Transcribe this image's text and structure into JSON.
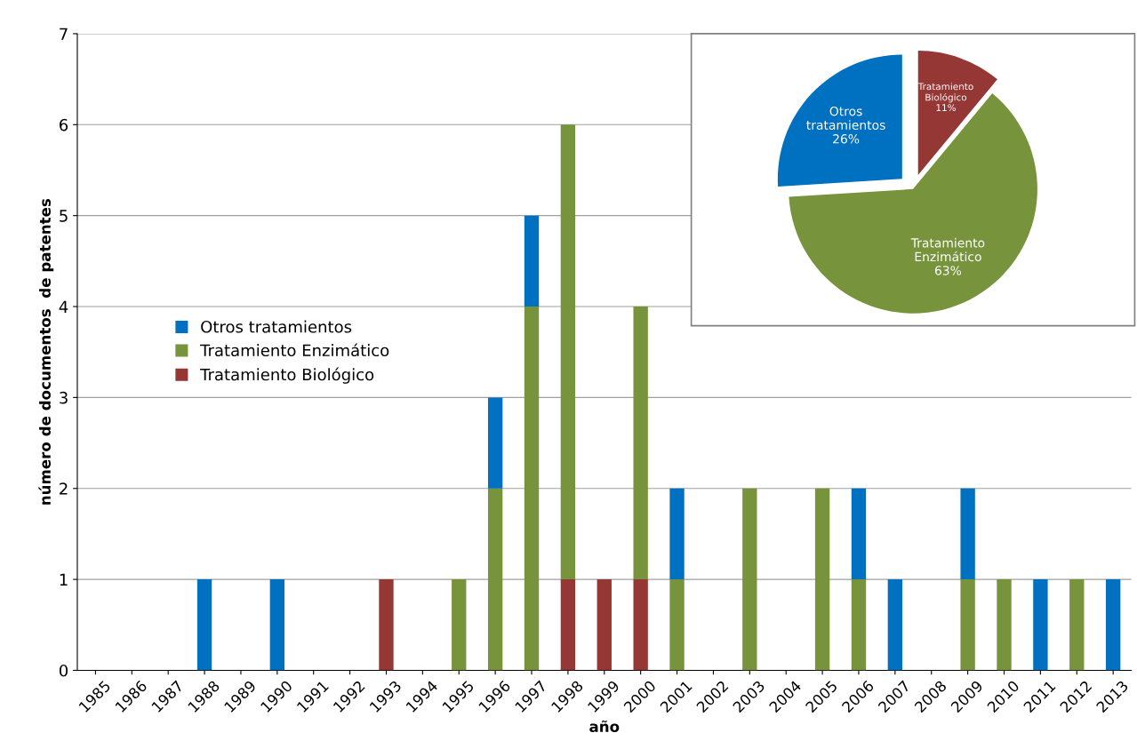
{
  "chart_data": [
    {
      "type": "bar",
      "stacked": true,
      "xlabel": "año",
      "ylabel": "número de documentos  de patentes",
      "categories": [
        "1985",
        "1986",
        "1987",
        "1988",
        "1989",
        "1990",
        "1991",
        "1992",
        "1993",
        "1994",
        "1995",
        "1996",
        "1997",
        "1998",
        "1999",
        "2000",
        "2001",
        "2002",
        "2003",
        "2004",
        "2005",
        "2006",
        "2007",
        "2008",
        "2009",
        "2010",
        "2011",
        "2012",
        "2013"
      ],
      "series": [
        {
          "name": "Tratamiento Biológico",
          "color": "#953735",
          "values": [
            0,
            0,
            0,
            0,
            0,
            0,
            0,
            0,
            1,
            0,
            0,
            0,
            0,
            1,
            1,
            1,
            0,
            0,
            0,
            0,
            0,
            0,
            0,
            0,
            0,
            0,
            0,
            0,
            0
          ]
        },
        {
          "name": "Tratamiento Enzimático",
          "color": "#77933c",
          "values": [
            0,
            0,
            0,
            0,
            0,
            0,
            0,
            0,
            0,
            0,
            1,
            2,
            4,
            5,
            0,
            3,
            1,
            0,
            2,
            0,
            2,
            1,
            0,
            0,
            1,
            1,
            0,
            1,
            0
          ]
        },
        {
          "name": "Otros tratamientos",
          "color": "#0070c0",
          "values": [
            0,
            0,
            0,
            1,
            0,
            1,
            0,
            0,
            0,
            0,
            0,
            1,
            1,
            0,
            0,
            0,
            1,
            0,
            0,
            0,
            0,
            1,
            1,
            0,
            1,
            0,
            1,
            0,
            1
          ]
        }
      ],
      "ylim": [
        0,
        7
      ],
      "yticks": [
        0,
        1,
        2,
        3,
        4,
        5,
        6,
        7
      ],
      "grid": "y",
      "legend": "left"
    },
    {
      "type": "pie",
      "categories": [
        "Tratamiento Biológico",
        "Tratamiento Enzimático",
        "Otros tratamientos"
      ],
      "values": [
        11,
        63,
        26
      ],
      "colors": [
        "#953735",
        "#77933c",
        "#0070c0"
      ],
      "value_labels": [
        "11%",
        "63%",
        "26%"
      ]
    }
  ]
}
